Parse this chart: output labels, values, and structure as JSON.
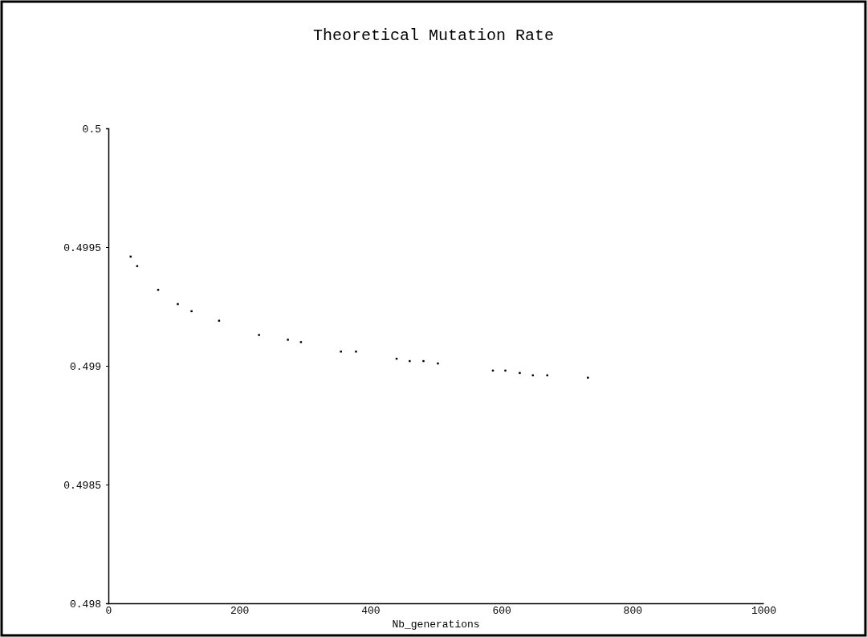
{
  "chart_data": {
    "type": "scatter",
    "title": "Theoretical Mutation Rate",
    "xlabel": "Nb_generations",
    "x": [
      34,
      44,
      76,
      106,
      127,
      169,
      230,
      274,
      294,
      355,
      378,
      440,
      460,
      481,
      503,
      587,
      606,
      628,
      648,
      670,
      732
    ],
    "series": [
      {
        "color": "#000000",
        "values": [
          0.49946,
          0.49942,
          0.49932,
          0.49926,
          0.49923,
          0.49919,
          0.49913,
          0.49911,
          0.4991,
          0.49906,
          0.49906,
          0.49903,
          0.49902,
          0.49902,
          0.49901,
          0.49898,
          0.49898,
          0.49897,
          0.49896,
          0.49896,
          0.49895
        ]
      }
    ],
    "xlim": [
      0,
      1000
    ],
    "xticks": [
      0,
      200,
      400,
      600,
      800,
      1000
    ],
    "ylim": [
      0.498,
      0.5
    ],
    "yticks": [
      0.498,
      0.4985,
      0.499,
      0.4995,
      0.5
    ],
    "marker": "square",
    "grid": false
  }
}
